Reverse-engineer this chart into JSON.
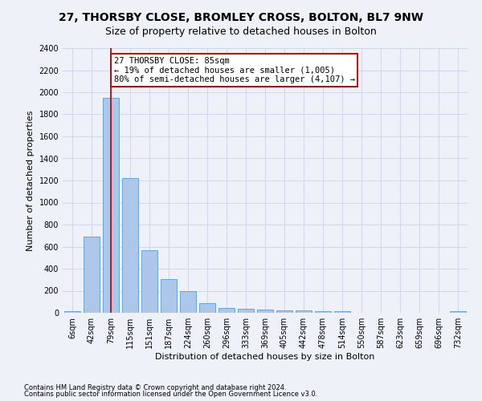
{
  "title": "27, THORSBY CLOSE, BROMLEY CROSS, BOLTON, BL7 9NW",
  "subtitle": "Size of property relative to detached houses in Bolton",
  "xlabel": "Distribution of detached houses by size in Bolton",
  "ylabel": "Number of detached properties",
  "footnote1": "Contains HM Land Registry data © Crown copyright and database right 2024.",
  "footnote2": "Contains public sector information licensed under the Open Government Licence v3.0.",
  "categories": [
    "6sqm",
    "42sqm",
    "79sqm",
    "115sqm",
    "151sqm",
    "187sqm",
    "224sqm",
    "260sqm",
    "296sqm",
    "333sqm",
    "369sqm",
    "405sqm",
    "442sqm",
    "478sqm",
    "514sqm",
    "550sqm",
    "587sqm",
    "623sqm",
    "659sqm",
    "696sqm",
    "732sqm"
  ],
  "values": [
    15,
    690,
    1950,
    1220,
    570,
    305,
    200,
    85,
    45,
    38,
    30,
    25,
    20,
    18,
    15,
    0,
    0,
    0,
    0,
    0,
    15
  ],
  "bar_color": "#aec6e8",
  "bar_edge_color": "#5b9bd5",
  "grid_color": "#d0d8e8",
  "background_color": "#eef2f8",
  "vline_x_index": 2,
  "vline_color": "#cc0000",
  "annotation_line1": "27 THORSBY CLOSE: 85sqm",
  "annotation_line2": "← 19% of detached houses are smaller (1,005)",
  "annotation_line3": "80% of semi-detached houses are larger (4,107) →",
  "annotation_box_color": "#ffffff",
  "annotation_border_color": "#cc0000",
  "ylim": [
    0,
    2400
  ],
  "yticks": [
    0,
    200,
    400,
    600,
    800,
    1000,
    1200,
    1400,
    1600,
    1800,
    2000,
    2200,
    2400
  ],
  "title_fontsize": 10,
  "subtitle_fontsize": 9,
  "axis_label_fontsize": 8,
  "tick_fontsize": 7,
  "annotation_fontsize": 7.5,
  "footnote_fontsize": 6
}
